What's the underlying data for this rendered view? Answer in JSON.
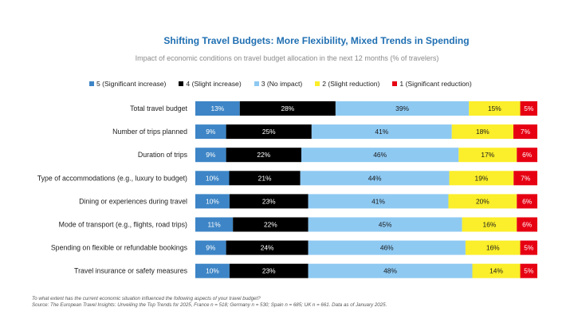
{
  "chart_data": {
    "type": "bar",
    "orientation": "horizontal",
    "stacked": true,
    "title": "Shifting Travel Budgets: More Flexibility, Mixed Trends in Spending",
    "subtitle": "Impact of economic conditions on travel budget allocation in the next 12 months (% of travelers)",
    "categories": [
      "Total travel budget",
      "Number of trips planned",
      "Duration of trips",
      "Type of accommodations (e.g., luxury to budget)",
      "Dining or experiences during travel",
      "Mode of transport (e.g., flights, road trips)",
      "Spending on flexible or refundable bookings",
      "Travel insurance or safety measures"
    ],
    "series": [
      {
        "name": "5 (Significant increase)",
        "color": "#3d85c6",
        "text_color": "#ffffff",
        "values": [
          13,
          9,
          9,
          10,
          10,
          11,
          9,
          10
        ]
      },
      {
        "name": "4 (Slight increase)",
        "color": "#000000",
        "text_color": "#ffffff",
        "values": [
          28,
          25,
          22,
          21,
          23,
          22,
          24,
          23
        ]
      },
      {
        "name": "3 (No impact)",
        "color": "#8ec9f2",
        "text_color": "#1a1a1a",
        "values": [
          39,
          41,
          46,
          44,
          41,
          45,
          46,
          48
        ]
      },
      {
        "name": "2 (Slight reduction)",
        "color": "#fbee2a",
        "text_color": "#1a1a1a",
        "values": [
          15,
          18,
          17,
          19,
          20,
          16,
          16,
          14
        ]
      },
      {
        "name": "1 (Significant reduction)",
        "color": "#e60012",
        "text_color": "#ffffff",
        "values": [
          5,
          7,
          6,
          7,
          6,
          6,
          5,
          5
        ]
      }
    ],
    "legend_position": "top",
    "grid": false
  },
  "footnote": {
    "question": "To what extent has the current economic situation influenced the following aspects of your travel budget?",
    "source": "Source: The European Travel Insights: Unveiling the Top Trends for 2025, France n = 518; Germany n = 530; Spain n = 685; UK n = 661. Data as of January 2025."
  }
}
